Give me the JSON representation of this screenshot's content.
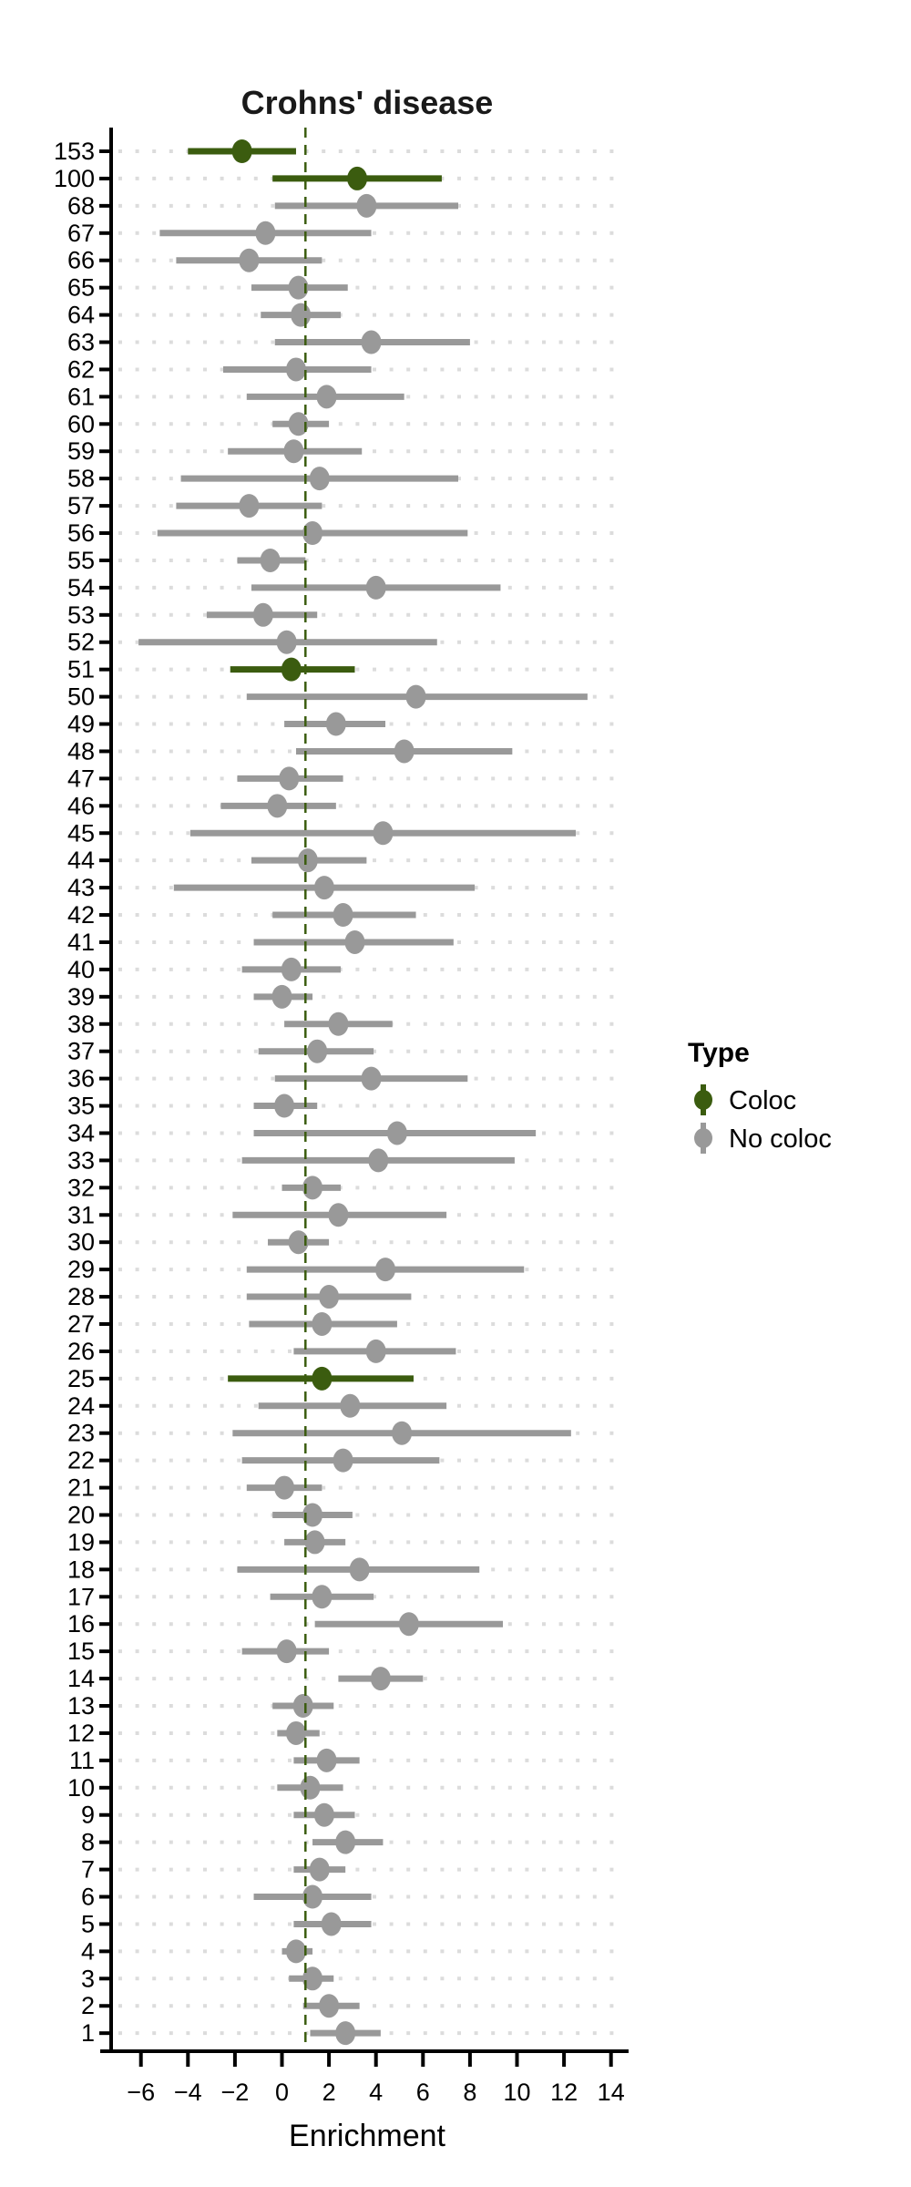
{
  "chart_data": {
    "type": "scatter",
    "subtype": "forest-pointrange",
    "title": "Crohns' disease",
    "xlabel": "Enrichment",
    "ylabel": "",
    "x_axis": {
      "ticks": [
        -6,
        -4,
        -2,
        0,
        2,
        4,
        6,
        8,
        10,
        12,
        14
      ],
      "xlim": [
        -7.3,
        14.5
      ]
    },
    "reference_line_x": 1,
    "grid": "dotted-horizontal",
    "legend": {
      "title": "Type",
      "position": "right",
      "entries": [
        {
          "label": "Coloc",
          "color": "#3b5c0f"
        },
        {
          "label": "No coloc",
          "color": "#999999"
        }
      ]
    },
    "colors": {
      "coloc": "#3b5c0f",
      "no_coloc": "#999999",
      "grid_dots": "#dcdcdc",
      "axis": "#000000",
      "reference_line": "#3b5c0f"
    },
    "rows": [
      {
        "label": "153",
        "est": -1.7,
        "lo": -4.0,
        "hi": 0.6,
        "type": "coloc"
      },
      {
        "label": "100",
        "est": 3.2,
        "lo": -0.4,
        "hi": 6.8,
        "type": "coloc"
      },
      {
        "label": "68",
        "est": 3.6,
        "lo": -0.3,
        "hi": 7.5,
        "type": "no_coloc"
      },
      {
        "label": "67",
        "est": -0.7,
        "lo": -5.2,
        "hi": 3.8,
        "type": "no_coloc"
      },
      {
        "label": "66",
        "est": -1.4,
        "lo": -4.5,
        "hi": 1.7,
        "type": "no_coloc"
      },
      {
        "label": "65",
        "est": 0.7,
        "lo": -1.3,
        "hi": 2.8,
        "type": "no_coloc"
      },
      {
        "label": "64",
        "est": 0.8,
        "lo": -0.9,
        "hi": 2.5,
        "type": "no_coloc"
      },
      {
        "label": "63",
        "est": 3.8,
        "lo": -0.3,
        "hi": 8.0,
        "type": "no_coloc"
      },
      {
        "label": "62",
        "est": 0.6,
        "lo": -2.5,
        "hi": 3.8,
        "type": "no_coloc"
      },
      {
        "label": "61",
        "est": 1.9,
        "lo": -1.5,
        "hi": 5.2,
        "type": "no_coloc"
      },
      {
        "label": "60",
        "est": 0.7,
        "lo": -0.4,
        "hi": 2.0,
        "type": "no_coloc"
      },
      {
        "label": "59",
        "est": 0.5,
        "lo": -2.3,
        "hi": 3.4,
        "type": "no_coloc"
      },
      {
        "label": "58",
        "est": 1.6,
        "lo": -4.3,
        "hi": 7.5,
        "type": "no_coloc"
      },
      {
        "label": "57",
        "est": -1.4,
        "lo": -4.5,
        "hi": 1.7,
        "type": "no_coloc"
      },
      {
        "label": "56",
        "est": 1.3,
        "lo": -5.3,
        "hi": 7.9,
        "type": "no_coloc"
      },
      {
        "label": "55",
        "est": -0.5,
        "lo": -1.9,
        "hi": 1.0,
        "type": "no_coloc"
      },
      {
        "label": "54",
        "est": 4.0,
        "lo": -1.3,
        "hi": 9.3,
        "type": "no_coloc"
      },
      {
        "label": "53",
        "est": -0.8,
        "lo": -3.2,
        "hi": 1.5,
        "type": "no_coloc"
      },
      {
        "label": "52",
        "est": 0.2,
        "lo": -6.1,
        "hi": 6.6,
        "type": "no_coloc"
      },
      {
        "label": "51",
        "est": 0.4,
        "lo": -2.2,
        "hi": 3.1,
        "type": "coloc"
      },
      {
        "label": "50",
        "est": 5.7,
        "lo": -1.5,
        "hi": 13.0,
        "type": "no_coloc"
      },
      {
        "label": "49",
        "est": 2.3,
        "lo": 0.1,
        "hi": 4.4,
        "type": "no_coloc"
      },
      {
        "label": "48",
        "est": 5.2,
        "lo": 0.6,
        "hi": 9.8,
        "type": "no_coloc"
      },
      {
        "label": "47",
        "est": 0.3,
        "lo": -1.9,
        "hi": 2.6,
        "type": "no_coloc"
      },
      {
        "label": "46",
        "est": -0.2,
        "lo": -2.6,
        "hi": 2.3,
        "type": "no_coloc"
      },
      {
        "label": "45",
        "est": 4.3,
        "lo": -3.9,
        "hi": 12.5,
        "type": "no_coloc"
      },
      {
        "label": "44",
        "est": 1.1,
        "lo": -1.3,
        "hi": 3.6,
        "type": "no_coloc"
      },
      {
        "label": "43",
        "est": 1.8,
        "lo": -4.6,
        "hi": 8.2,
        "type": "no_coloc"
      },
      {
        "label": "42",
        "est": 2.6,
        "lo": -0.4,
        "hi": 5.7,
        "type": "no_coloc"
      },
      {
        "label": "41",
        "est": 3.1,
        "lo": -1.2,
        "hi": 7.3,
        "type": "no_coloc"
      },
      {
        "label": "40",
        "est": 0.4,
        "lo": -1.7,
        "hi": 2.5,
        "type": "no_coloc"
      },
      {
        "label": "39",
        "est": 0.0,
        "lo": -1.2,
        "hi": 1.3,
        "type": "no_coloc"
      },
      {
        "label": "38",
        "est": 2.4,
        "lo": 0.1,
        "hi": 4.7,
        "type": "no_coloc"
      },
      {
        "label": "37",
        "est": 1.5,
        "lo": -1.0,
        "hi": 3.9,
        "type": "no_coloc"
      },
      {
        "label": "36",
        "est": 3.8,
        "lo": -0.3,
        "hi": 7.9,
        "type": "no_coloc"
      },
      {
        "label": "35",
        "est": 0.1,
        "lo": -1.2,
        "hi": 1.5,
        "type": "no_coloc"
      },
      {
        "label": "34",
        "est": 4.9,
        "lo": -1.2,
        "hi": 10.8,
        "type": "no_coloc"
      },
      {
        "label": "33",
        "est": 4.1,
        "lo": -1.7,
        "hi": 9.9,
        "type": "no_coloc"
      },
      {
        "label": "32",
        "est": 1.3,
        "lo": 0.0,
        "hi": 2.5,
        "type": "no_coloc"
      },
      {
        "label": "31",
        "est": 2.4,
        "lo": -2.1,
        "hi": 7.0,
        "type": "no_coloc"
      },
      {
        "label": "30",
        "est": 0.7,
        "lo": -0.6,
        "hi": 2.0,
        "type": "no_coloc"
      },
      {
        "label": "29",
        "est": 4.4,
        "lo": -1.5,
        "hi": 10.3,
        "type": "no_coloc"
      },
      {
        "label": "28",
        "est": 2.0,
        "lo": -1.5,
        "hi": 5.5,
        "type": "no_coloc"
      },
      {
        "label": "27",
        "est": 1.7,
        "lo": -1.4,
        "hi": 4.9,
        "type": "no_coloc"
      },
      {
        "label": "26",
        "est": 4.0,
        "lo": 0.5,
        "hi": 7.4,
        "type": "no_coloc"
      },
      {
        "label": "25",
        "est": 1.7,
        "lo": -2.3,
        "hi": 5.6,
        "type": "coloc"
      },
      {
        "label": "24",
        "est": 2.9,
        "lo": -1.0,
        "hi": 7.0,
        "type": "no_coloc"
      },
      {
        "label": "23",
        "est": 5.1,
        "lo": -2.1,
        "hi": 12.3,
        "type": "no_coloc"
      },
      {
        "label": "22",
        "est": 2.6,
        "lo": -1.7,
        "hi": 6.7,
        "type": "no_coloc"
      },
      {
        "label": "21",
        "est": 0.1,
        "lo": -1.5,
        "hi": 1.7,
        "type": "no_coloc"
      },
      {
        "label": "20",
        "est": 1.3,
        "lo": -0.4,
        "hi": 3.0,
        "type": "no_coloc"
      },
      {
        "label": "19",
        "est": 1.4,
        "lo": 0.1,
        "hi": 2.7,
        "type": "no_coloc"
      },
      {
        "label": "18",
        "est": 3.3,
        "lo": -1.9,
        "hi": 8.4,
        "type": "no_coloc"
      },
      {
        "label": "17",
        "est": 1.7,
        "lo": -0.5,
        "hi": 3.9,
        "type": "no_coloc"
      },
      {
        "label": "16",
        "est": 5.4,
        "lo": 1.4,
        "hi": 9.4,
        "type": "no_coloc"
      },
      {
        "label": "15",
        "est": 0.2,
        "lo": -1.7,
        "hi": 2.0,
        "type": "no_coloc"
      },
      {
        "label": "14",
        "est": 4.2,
        "lo": 2.4,
        "hi": 6.0,
        "type": "no_coloc"
      },
      {
        "label": "13",
        "est": 0.9,
        "lo": -0.4,
        "hi": 2.2,
        "type": "no_coloc"
      },
      {
        "label": "12",
        "est": 0.6,
        "lo": -0.2,
        "hi": 1.6,
        "type": "no_coloc"
      },
      {
        "label": "11",
        "est": 1.9,
        "lo": 0.5,
        "hi": 3.3,
        "type": "no_coloc"
      },
      {
        "label": "10",
        "est": 1.2,
        "lo": -0.2,
        "hi": 2.6,
        "type": "no_coloc"
      },
      {
        "label": "9",
        "est": 1.8,
        "lo": 0.5,
        "hi": 3.1,
        "type": "no_coloc"
      },
      {
        "label": "8",
        "est": 2.7,
        "lo": 1.3,
        "hi": 4.3,
        "type": "no_coloc"
      },
      {
        "label": "7",
        "est": 1.6,
        "lo": 0.5,
        "hi": 2.7,
        "type": "no_coloc"
      },
      {
        "label": "6",
        "est": 1.3,
        "lo": -1.2,
        "hi": 3.8,
        "type": "no_coloc"
      },
      {
        "label": "5",
        "est": 2.1,
        "lo": 0.5,
        "hi": 3.8,
        "type": "no_coloc"
      },
      {
        "label": "4",
        "est": 0.6,
        "lo": 0.0,
        "hi": 1.3,
        "type": "no_coloc"
      },
      {
        "label": "3",
        "est": 1.3,
        "lo": 0.3,
        "hi": 2.2,
        "type": "no_coloc"
      },
      {
        "label": "2",
        "est": 2.0,
        "lo": 0.9,
        "hi": 3.3,
        "type": "no_coloc"
      },
      {
        "label": "1",
        "est": 2.7,
        "lo": 1.2,
        "hi": 4.2,
        "type": "no_coloc"
      }
    ]
  }
}
